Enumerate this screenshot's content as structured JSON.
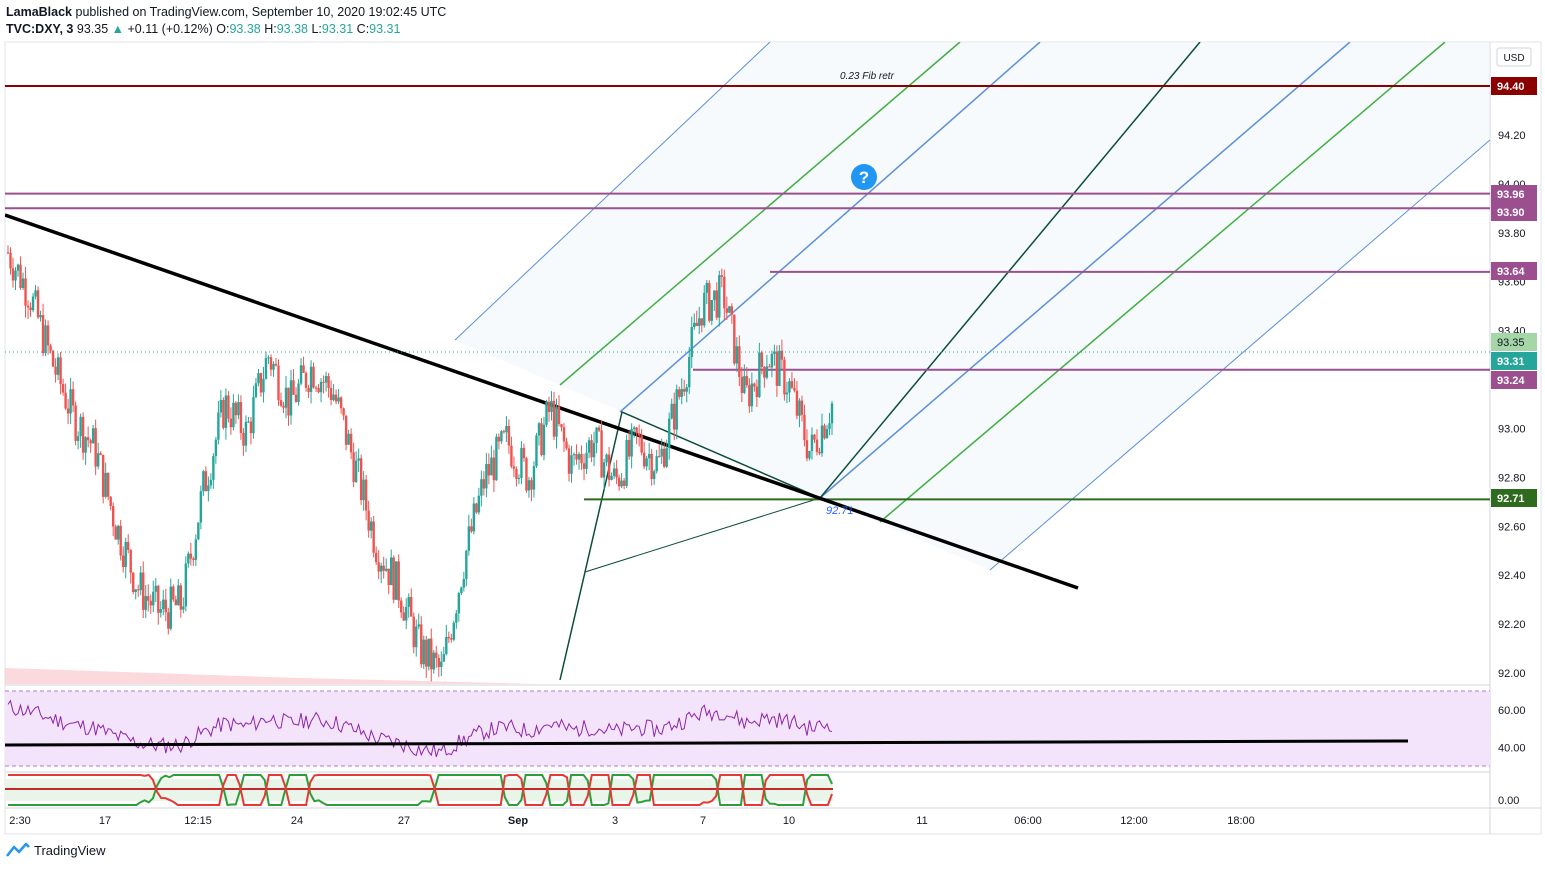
{
  "header": {
    "author": "LamaBlack",
    "published_text": "published on TradingView.com, September 10, 2020 19:02:45 UTC",
    "symbol": "TVC:DXY, 3",
    "last": "93.35",
    "change_arrow": "▲",
    "change": "+0.11 (+0.12%)",
    "o_label": "O:",
    "o_value": "93.38",
    "h_label": "H:",
    "h_value": "93.38",
    "l_label": "L:",
    "l_value": "93.31",
    "c_label": "C:",
    "c_value": "93.31"
  },
  "footer": {
    "brand": "TradingView"
  },
  "colors": {
    "up": "#26a69a",
    "down": "#ef5350",
    "trend": "#000000",
    "fib_line": "#8b0000",
    "level_line": "#9c4f8f",
    "support_line": "#2e6b1e",
    "pitch_center": "#0b4d3a",
    "pitch_blue": "#5b8fd9",
    "pitch_green": "#3fae3f",
    "rsi_line": "#8e24aa",
    "rsi_band": "#f3e3fb"
  },
  "chart_data": [
    {
      "type": "candlestick",
      "title": "TVC:DXY, 3",
      "currency": "USD",
      "ylim": [
        91.9,
        94.6
      ],
      "y_ticks": [
        "92.00",
        "92.20",
        "92.40",
        "92.60",
        "92.80",
        "93.00",
        "93.20",
        "93.40",
        "93.60",
        "93.80",
        "94.00",
        "94.20",
        "94.40"
      ],
      "x_ticks": [
        "2:30",
        "17",
        "12:15",
        "24",
        "27",
        "Sep",
        "3",
        "7",
        "10",
        "11",
        "06:00",
        "12:00",
        "18:00"
      ],
      "price_path": [
        93.72,
        93.55,
        93.28,
        93.05,
        92.92,
        92.6,
        92.35,
        92.25,
        92.28,
        92.75,
        93.1,
        92.98,
        93.3,
        93.1,
        93.25,
        93.15,
        92.85,
        92.52,
        92.35,
        92.1,
        92.0,
        92.45,
        92.8,
        92.95,
        92.8,
        93.08,
        92.85,
        92.95,
        92.78,
        92.95,
        92.85,
        93.15,
        93.5,
        93.55,
        93.12,
        93.3,
        93.18,
        92.9,
        93.1
      ],
      "price_labels": [
        {
          "value": "94.40",
          "bg": "#8b0000"
        },
        {
          "value": "93.96",
          "bg": "#9c4f8f"
        },
        {
          "value": "93.90",
          "bg": "#9c4f8f"
        },
        {
          "value": "93.64",
          "bg": "#9c4f8f"
        },
        {
          "value": "93.35",
          "bg": "#a5d6a7"
        },
        {
          "value": "93.31",
          "bg": "#26a69a"
        },
        {
          "value": "93.24",
          "bg": "#9c4f8f"
        },
        {
          "value": "92.71",
          "bg": "#2e6b1e"
        }
      ],
      "annotations": [
        {
          "text": "0.23 Fib retr",
          "price": 94.4
        },
        {
          "text": "92.71",
          "price": 92.71
        }
      ],
      "horizontal_levels": [
        94.4,
        93.96,
        93.9,
        93.64,
        93.24,
        92.71
      ]
    },
    {
      "type": "line",
      "name": "RSI",
      "y_ticks": [
        "60.00",
        "40.00"
      ],
      "ylim": [
        30,
        70
      ],
      "upper_band": 70,
      "lower_band": 30
    },
    {
      "type": "line",
      "name": "oscillator",
      "y_ticks": [
        "0.00"
      ]
    }
  ]
}
